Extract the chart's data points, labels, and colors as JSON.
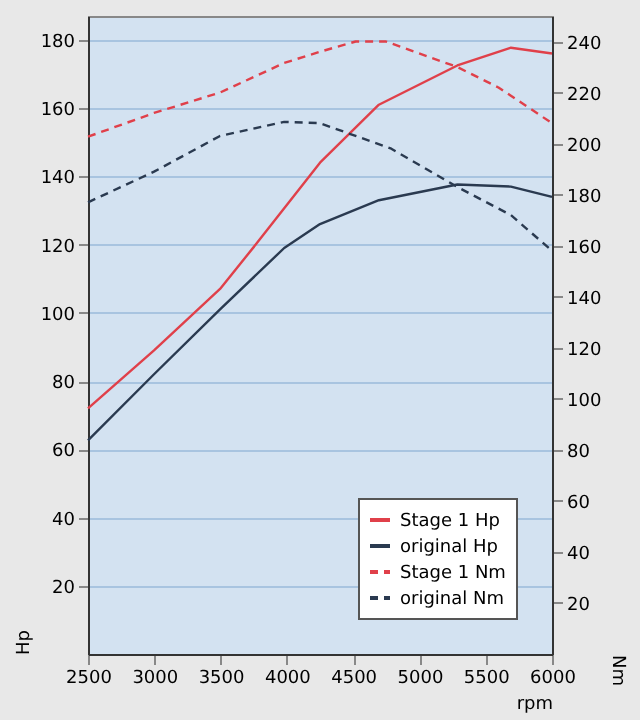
{
  "chart_data": {
    "type": "line",
    "xlabel": "rpm",
    "ylabel": "Hp",
    "y2label": "Nm",
    "xlim": [
      2500,
      6000
    ],
    "xticks": [
      2500,
      3000,
      3500,
      4000,
      4500,
      5000,
      5500,
      6000
    ],
    "ylim": [
      0,
      187
    ],
    "yticks": [
      20,
      40,
      60,
      80,
      100,
      120,
      140,
      160,
      180
    ],
    "y2lim": [
      0,
      250
    ],
    "y2ticks": [
      20,
      40,
      60,
      80,
      100,
      120,
      140,
      160,
      180,
      200,
      220,
      240
    ],
    "grid": "y",
    "legend": "bottom right",
    "marker": "none",
    "series": [
      {
        "name": "Stage 1 Hp",
        "color": "#e0404a",
        "line_style": "solid",
        "x": [
          2500,
          2998,
          3496,
          3765,
          4250,
          4694,
          5286,
          5690,
          6000
        ],
        "values": [
          72,
          89,
          107,
          120,
          144,
          161,
          172.5,
          177.7,
          176
        ]
      },
      {
        "name": "original Hp",
        "color": "#2a3a50",
        "line_style": "solid",
        "x": [
          2500,
          2998,
          3496,
          3980,
          4250,
          4694,
          5286,
          5690,
          6000
        ],
        "values": [
          62.6,
          82,
          101,
          119,
          126,
          133,
          137.6,
          137,
          134
        ]
      },
      {
        "name": "Stage 1 Nm",
        "color": "#e0404a",
        "line_style": "dashed",
        "axis": "y2",
        "x": [
          2500,
          2998,
          3496,
          3980,
          4250,
          4519,
          4748,
          5286,
          5596,
          6000
        ],
        "values": [
          202.7,
          212,
          220,
          231.6,
          236,
          240,
          240,
          230,
          222,
          208
        ]
      },
      {
        "name": "original Nm",
        "color": "#2a3a50",
        "line_style": "dashed",
        "axis": "y2",
        "x": [
          2500,
          2998,
          3496,
          3980,
          4250,
          4788,
          5286,
          5690,
          6000
        ],
        "values": [
          177,
          189,
          203,
          208.5,
          208,
          198,
          183,
          172,
          158
        ]
      }
    ]
  }
}
